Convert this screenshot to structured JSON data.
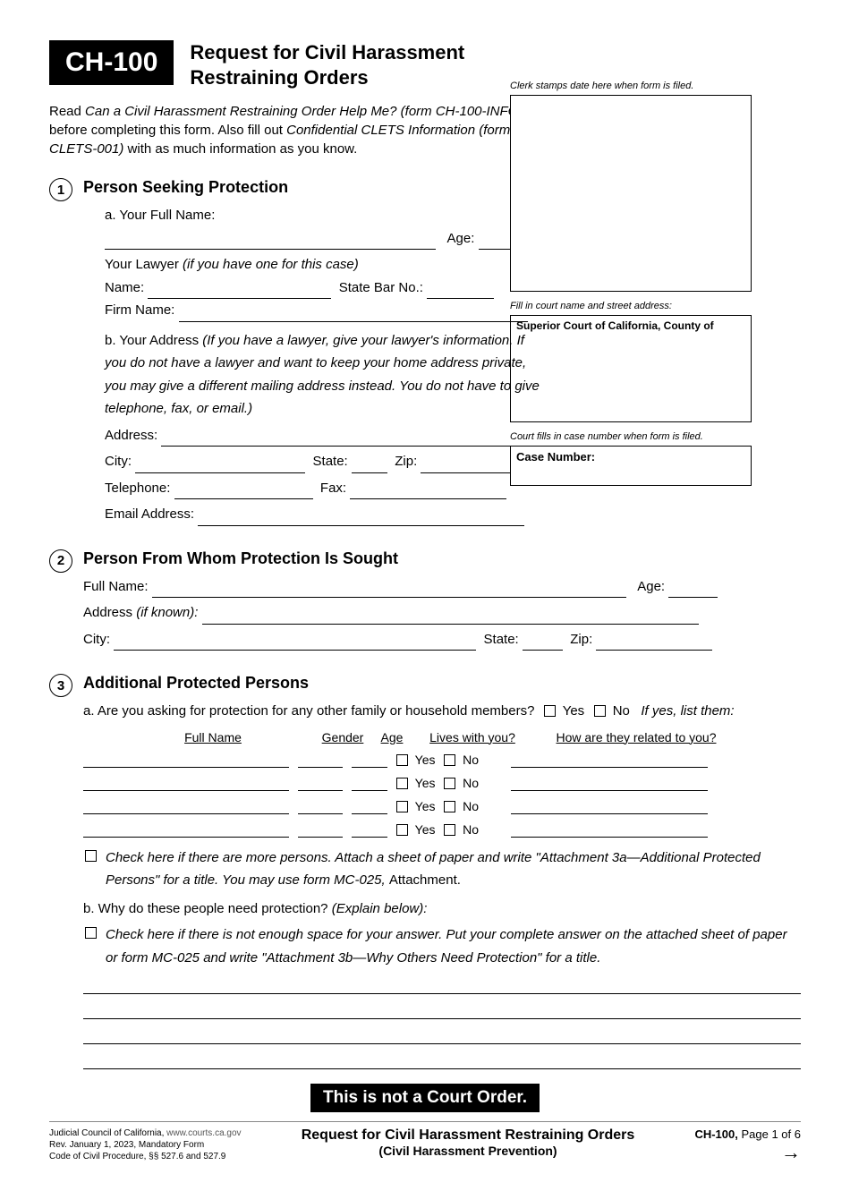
{
  "form_code": "CH-100",
  "form_title_l1": "Request for Civil Harassment",
  "form_title_l2": "Restraining Orders",
  "intro_p1a": "Read ",
  "intro_p1b": "Can a Civil Harassment Restraining Order Help Me? (form CH-100-INFO)",
  "intro_p1c": " before completing this form. Also fill out ",
  "intro_p1d": "Confidential CLETS Information (form CLETS-001)",
  "intro_p1e": " with as much information as you know.",
  "right": {
    "stamp_note": "Clerk stamps date here when form is filed.",
    "court_note": "Fill in court name and street address:",
    "court_label": "Superior Court of California, County of",
    "case_note": "Court fills in case number when form is filed.",
    "case_label": "Case Number:"
  },
  "s1": {
    "heading": "Person Seeking Protection",
    "a_label": "a.  Your Full Name:",
    "age": "Age:",
    "lawyer": "Your Lawyer ",
    "lawyer_ital": "(if you have one for this case)",
    "name": "Name:",
    "statebar": "State Bar No.:",
    "firm": "Firm Name:",
    "b_label": "b.  Your Address ",
    "b_ital": "(If you have a lawyer, give your lawyer's information. If you do not have a lawyer and want to keep your home address private, you may give a different mailing address instead. You do not have to give telephone, fax, or email.)",
    "address": "Address:",
    "city": "City:",
    "state": "State:",
    "zip": "Zip:",
    "tel": "Telephone:",
    "fax": "Fax:",
    "email": "Email Address:"
  },
  "s2": {
    "heading": "Person From Whom Protection Is Sought",
    "fullname": "Full Name:",
    "age": "Age:",
    "address": "Address ",
    "address_ital": "(if known):",
    "city": "City:",
    "state": "State:",
    "zip": "Zip:"
  },
  "s3": {
    "heading": "Additional Protected Persons",
    "a_text": "a.  Are you asking for protection for any other family or household members?",
    "yes": "Yes",
    "no": "No",
    "ifyes": "If yes, list them:",
    "th_name": "Full Name",
    "th_gender": "Gender",
    "th_age": "Age",
    "th_lives": "Lives with you?",
    "th_related": "How are they related to you?",
    "more_a": "Check here if there are more persons. Attach a sheet of paper and write \"Attachment 3a—Additional Protected Persons\" for a title. You may use form MC-025, ",
    "more_b": "Attachment.",
    "b_text": "b.  Why do these people need protection? ",
    "b_ital": "(Explain below):",
    "notspace": "Check here if there is not enough space for your answer. Put your complete answer on the attached sheet of paper or form MC-025 and write \"Attachment 3b—Why Others Need Protection\" for a title."
  },
  "banner": "This is not a Court Order.",
  "footer": {
    "l1": "Judicial Council of California, ",
    "url": "www.courts.ca.gov",
    "l2": "Rev. January 1, 2023, Mandatory Form",
    "l3": "Code of Civil Procedure, §§ 527.6 and 527.9",
    "center_l1": "Request for Civil Harassment Restraining Orders",
    "center_l2": "(Civil Harassment Prevention)",
    "right_code": "CH-100,",
    "right_page": " Page 1 of 6"
  }
}
